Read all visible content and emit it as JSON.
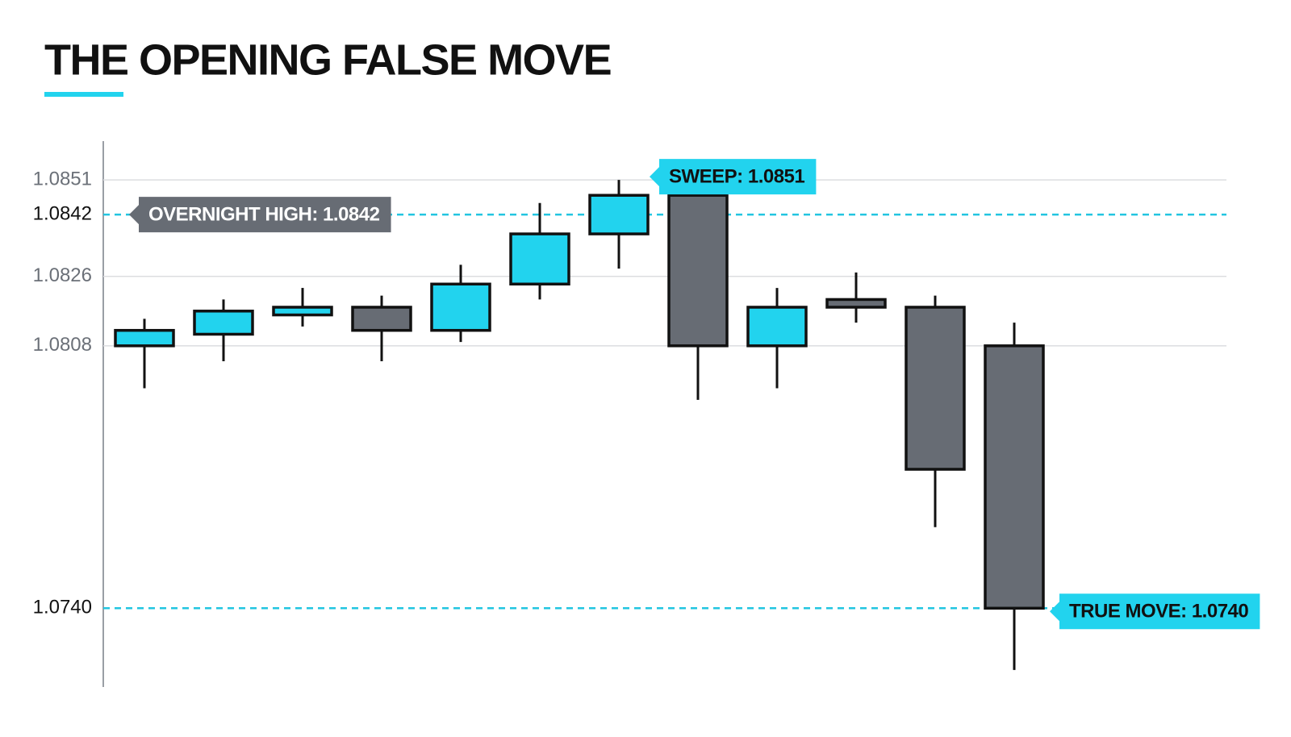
{
  "chart_data": {
    "type": "candlestick",
    "title": "THE OPENING FALSE MOVE",
    "open": [
      1.0808,
      1.0811,
      1.0816,
      1.0818,
      1.0812,
      1.0824,
      1.0837,
      1.0847,
      1.0808,
      1.082,
      1.0818,
      1.0808
    ],
    "high": [
      1.0815,
      1.082,
      1.0823,
      1.0821,
      1.0829,
      1.0845,
      1.0851,
      1.0847,
      1.0823,
      1.0827,
      1.0821,
      1.0814
    ],
    "low": [
      1.0797,
      1.0804,
      1.0813,
      1.0804,
      1.0809,
      1.082,
      1.0828,
      1.0794,
      1.0797,
      1.0814,
      1.0761,
      1.0724
    ],
    "close": [
      1.0812,
      1.0817,
      1.0818,
      1.0812,
      1.0824,
      1.0837,
      1.0847,
      1.0808,
      1.0818,
      1.0818,
      1.0776,
      1.074
    ],
    "up_color": "#22d3ee",
    "down_color": "#676c74",
    "ylim": [
      1.072,
      1.086
    ],
    "yticks": [
      {
        "value": 1.074,
        "label": "1.0740"
      },
      1.0808,
      1.0826,
      1.0842,
      1.0851
    ],
    "grid": true,
    "reference_lines": [
      {
        "value": 1.0842,
        "label": "OVERNIGHT HIGH: 1.0842",
        "side": "left",
        "color": "#676c74"
      },
      {
        "value": 1.074,
        "label": "TRUE MOVE: 1.0740",
        "side": "right",
        "color": "#22d3ee"
      }
    ],
    "annotations": [
      {
        "value": 1.0851,
        "label": "SWEEP: 1.0851",
        "color": "#22d3ee"
      }
    ]
  }
}
